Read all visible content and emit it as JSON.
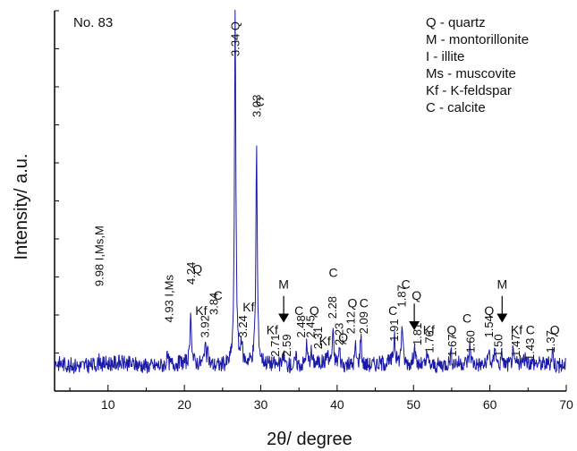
{
  "chart_data": {
    "type": "line",
    "sample_label": "No. 83",
    "xlabel": "2θ/ degree",
    "ylabel": "Intensity/ a.u.",
    "xlim": [
      3,
      70
    ],
    "ylim": [
      0,
      100
    ],
    "x_ticks": [
      10,
      20,
      30,
      40,
      50,
      60,
      70
    ],
    "legend": [
      "Q - quartz",
      "M - montorillonite",
      "I - illite",
      "Ms - muscovite",
      "Kf - K-feldspar",
      "C - calcite"
    ],
    "legend_position": "top-right",
    "series_color": "#1a1aa6",
    "baseline": 7,
    "peaks": [
      {
        "x": 8.9,
        "h": 1.5
      },
      {
        "x": 17.8,
        "h": 2
      },
      {
        "x": 20.85,
        "h": 13
      },
      {
        "x": 22.7,
        "h": 6
      },
      {
        "x": 23.1,
        "h": 3
      },
      {
        "x": 26.65,
        "h": 93
      },
      {
        "x": 27.5,
        "h": 5
      },
      {
        "x": 29.45,
        "h": 57
      },
      {
        "x": 33.0,
        "h": 3
      },
      {
        "x": 34.6,
        "h": 2
      },
      {
        "x": 36.0,
        "h": 5
      },
      {
        "x": 36.6,
        "h": 3
      },
      {
        "x": 38.7,
        "h": 3
      },
      {
        "x": 39.45,
        "h": 8
      },
      {
        "x": 40.3,
        "h": 4
      },
      {
        "x": 42.4,
        "h": 5
      },
      {
        "x": 43.1,
        "h": 8
      },
      {
        "x": 47.5,
        "h": 8
      },
      {
        "x": 48.5,
        "h": 11
      },
      {
        "x": 50.1,
        "h": 6
      },
      {
        "x": 51.8,
        "h": 3
      },
      {
        "x": 54.9,
        "h": 3
      },
      {
        "x": 57.4,
        "h": 5
      },
      {
        "x": 59.9,
        "h": 4
      },
      {
        "x": 60.7,
        "h": 6
      },
      {
        "x": 61.6,
        "h": 3
      },
      {
        "x": 63.0,
        "h": 3
      },
      {
        "x": 64.7,
        "h": 2
      },
      {
        "x": 68.2,
        "h": 4
      }
    ],
    "annotations": [
      {
        "x": 9.4,
        "y": 27.5,
        "text": "9.98 I,Ms,M",
        "rot": -90
      },
      {
        "x": 18.5,
        "y": 18,
        "text": "4.93 I,Ms",
        "rot": -90
      },
      {
        "x": 21.4,
        "y": 28,
        "text": "4.24",
        "rot": -90
      },
      {
        "x": 21.7,
        "y": 31,
        "text": "Q",
        "rot": 0
      },
      {
        "x": 22.2,
        "y": 20,
        "text": "Kf",
        "rot": 0
      },
      {
        "x": 23.2,
        "y": 14,
        "text": "3.92",
        "rot": -90
      },
      {
        "x": 24.4,
        "y": 20,
        "text": "3.84",
        "rot": -90
      },
      {
        "x": 24.4,
        "y": 24,
        "text": "C",
        "rot": 0
      },
      {
        "x": 27.2,
        "y": 88,
        "text": "3.34 Q",
        "rot": -90
      },
      {
        "x": 28.4,
        "y": 21,
        "text": "Kf",
        "rot": 0
      },
      {
        "x": 28.2,
        "y": 14,
        "text": "3.24",
        "rot": -90
      },
      {
        "x": 30.0,
        "y": 72,
        "text": "3.03",
        "rot": -90
      },
      {
        "x": 29.9,
        "y": 75,
        "text": "C",
        "rot": 0
      },
      {
        "x": 31.5,
        "y": 15,
        "text": "Kf",
        "rot": 0
      },
      {
        "x": 32.4,
        "y": 9,
        "text": "2.71",
        "rot": -90
      },
      {
        "x": 33.9,
        "y": 9,
        "text": "2.59",
        "rot": -90
      },
      {
        "x": 33.0,
        "y": 27,
        "text": "M",
        "rot": 0
      },
      {
        "x": 35.0,
        "y": 20,
        "text": "C",
        "rot": 0
      },
      {
        "x": 35.8,
        "y": 14,
        "text": "2.48",
        "rot": -90
      },
      {
        "x": 37.0,
        "y": 14,
        "text": "2.45",
        "rot": -90
      },
      {
        "x": 37.0,
        "y": 20,
        "text": "Q",
        "rot": 0
      },
      {
        "x": 38.0,
        "y": 11,
        "text": "2.31",
        "rot": -90
      },
      {
        "x": 38.4,
        "y": 12,
        "text": "Kf",
        "rot": 0
      },
      {
        "x": 39.9,
        "y": 19,
        "text": "2.28",
        "rot": -90
      },
      {
        "x": 39.5,
        "y": 30,
        "text": "C",
        "rot": 0
      },
      {
        "x": 40.8,
        "y": 12,
        "text": "2.23",
        "rot": -90
      },
      {
        "x": 40.8,
        "y": 13,
        "text": "Q",
        "rot": 0
      },
      {
        "x": 42.0,
        "y": 22,
        "text": "Q",
        "rot": 0
      },
      {
        "x": 42.3,
        "y": 15,
        "text": "2.12",
        "rot": -90
      },
      {
        "x": 44.0,
        "y": 15,
        "text": "2.09",
        "rot": -90
      },
      {
        "x": 43.5,
        "y": 22,
        "text": "C",
        "rot": 0
      },
      {
        "x": 47.3,
        "y": 20,
        "text": "C",
        "rot": 0
      },
      {
        "x": 48.0,
        "y": 13,
        "text": "1.91",
        "rot": -90
      },
      {
        "x": 49.0,
        "y": 22,
        "text": "1.87",
        "rot": -90
      },
      {
        "x": 49.0,
        "y": 27,
        "text": "C",
        "rot": 0
      },
      {
        "x": 50.4,
        "y": 24,
        "text": "Q",
        "rot": 0
      },
      {
        "x": 51.0,
        "y": 12,
        "text": "1.81",
        "rot": -90
      },
      {
        "x": 52.0,
        "y": 15,
        "text": "Kf",
        "rot": 0
      },
      {
        "x": 52.6,
        "y": 10,
        "text": "1.76",
        "rot": -90
      },
      {
        "x": 50.1,
        "y": 17,
        "text": "",
        "rot": 0
      },
      {
        "x": 55.0,
        "y": 15,
        "text": "Q",
        "rot": 0
      },
      {
        "x": 55.6,
        "y": 9,
        "text": "1.67",
        "rot": -90
      },
      {
        "x": 57.0,
        "y": 18,
        "text": "C",
        "rot": 0
      },
      {
        "x": 58.0,
        "y": 10,
        "text": "1.60",
        "rot": -90
      },
      {
        "x": 59.9,
        "y": 20,
        "text": "Q",
        "rot": 0
      },
      {
        "x": 60.4,
        "y": 14,
        "text": "1.54",
        "rot": -90
      },
      {
        "x": 61.6,
        "y": 9,
        "text": "1.50",
        "rot": -90
      },
      {
        "x": 61.6,
        "y": 27,
        "text": "M",
        "rot": 0
      },
      {
        "x": 63.5,
        "y": 15,
        "text": "Kf",
        "rot": 0
      },
      {
        "x": 63.9,
        "y": 9,
        "text": "1.47",
        "rot": -90
      },
      {
        "x": 65.3,
        "y": 15,
        "text": "C",
        "rot": 0
      },
      {
        "x": 65.8,
        "y": 8,
        "text": "1.43",
        "rot": -90
      },
      {
        "x": 68.5,
        "y": 15,
        "text": "Q",
        "rot": 0
      },
      {
        "x": 68.5,
        "y": 10,
        "text": "1.37",
        "rot": -90
      }
    ],
    "arrows": [
      {
        "x": 33.0,
        "y_top": 25,
        "y_bottom": 18
      },
      {
        "x": 50.1,
        "y_top": 23,
        "y_bottom": 16
      },
      {
        "x": 61.6,
        "y_top": 25,
        "y_bottom": 18
      }
    ]
  }
}
